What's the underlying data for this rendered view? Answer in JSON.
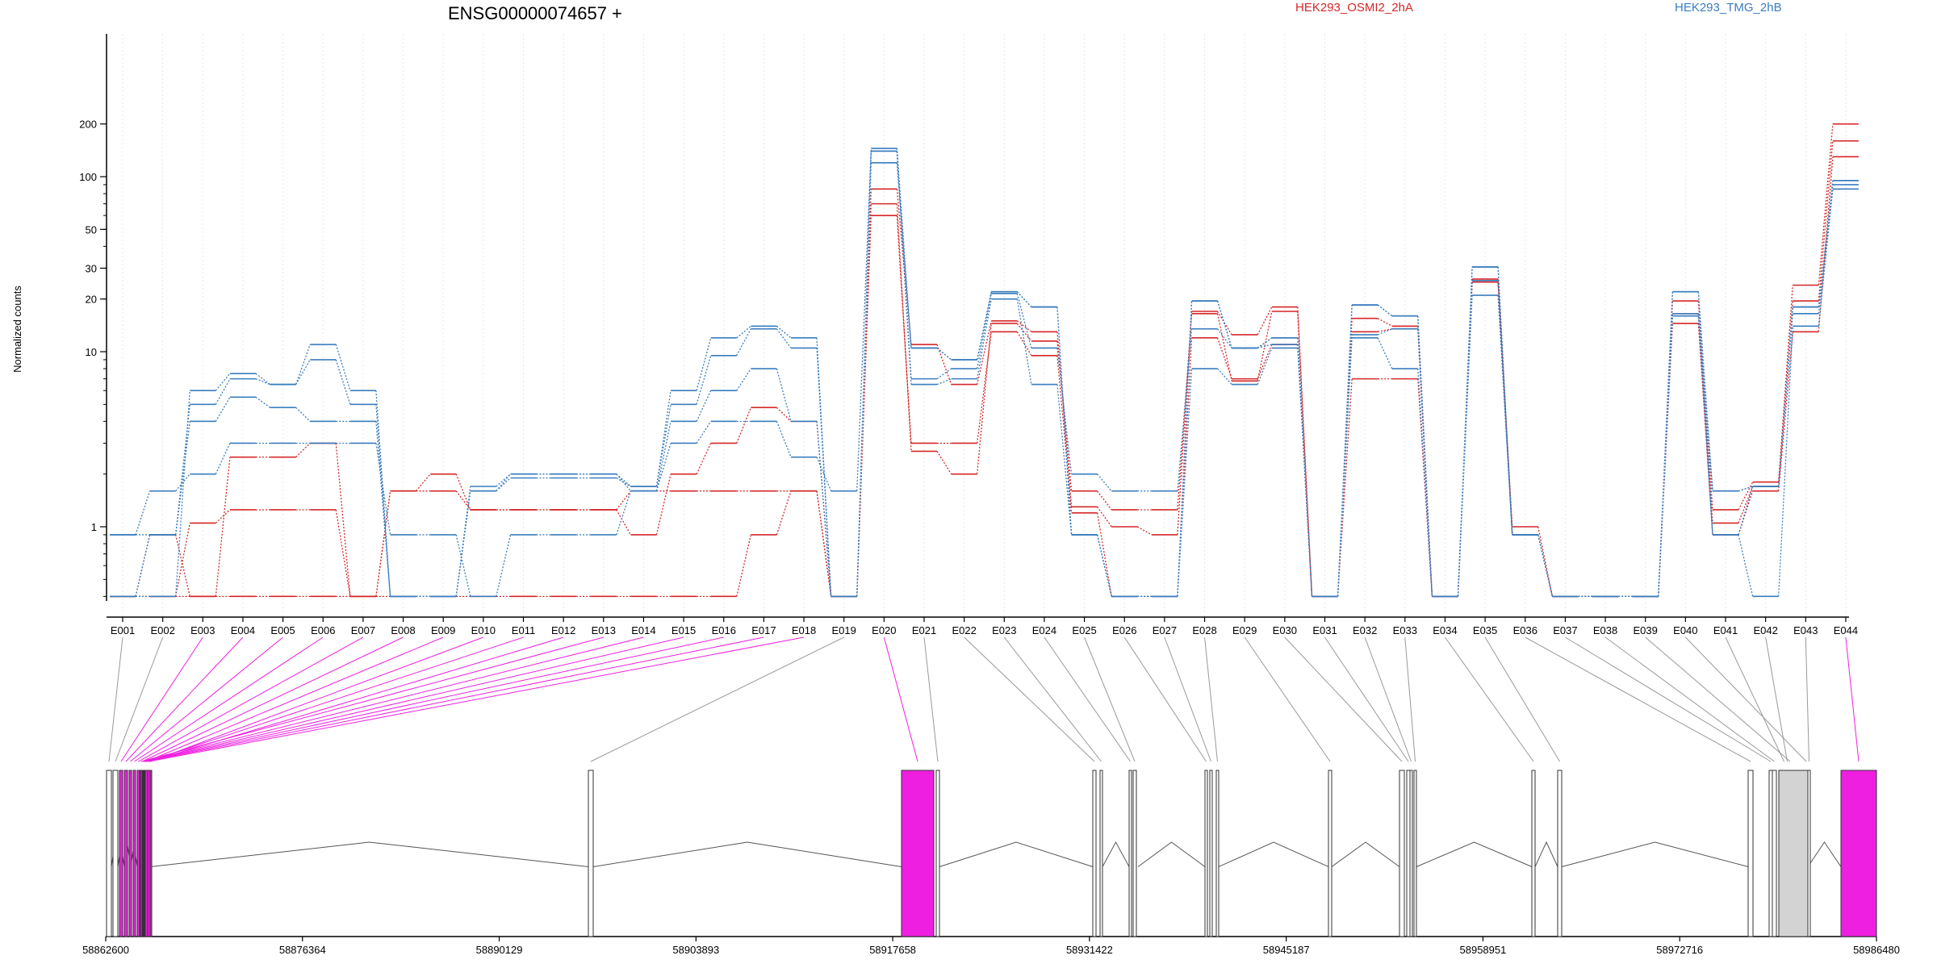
{
  "chart_data": {
    "type": "line",
    "title": "ENSG00000074657 +",
    "ylabel": "Normalized counts",
    "yscale": "log",
    "yticks": [
      1,
      10,
      20,
      30,
      50,
      100,
      200
    ],
    "ylim": [
      0.4,
      280
    ],
    "zero_level_value": 0.4,
    "legend": [
      {
        "name": "HEK293_OSMI2_2hA",
        "color": "#d62728"
      },
      {
        "name": "HEK293_TMG_2hB",
        "color": "#3a7dbf"
      }
    ],
    "categories": [
      "E001",
      "E002",
      "E003",
      "E004",
      "E005",
      "E006",
      "E007",
      "E008",
      "E009",
      "E010",
      "E011",
      "E012",
      "E013",
      "E014",
      "E015",
      "E016",
      "E017",
      "E018",
      "E019",
      "E020",
      "E021",
      "E022",
      "E023",
      "E024",
      "E025",
      "E026",
      "E027",
      "E028",
      "E029",
      "E030",
      "E031",
      "E032",
      "E033",
      "E034",
      "E035",
      "E036",
      "E037",
      "E038",
      "E039",
      "E040",
      "E041",
      "E042",
      "E043",
      "E044"
    ],
    "series": [
      {
        "group": "HEK293_OSMI2_2hA",
        "color": "#d62728",
        "values": [
          0.4,
          0.4,
          0.4,
          0.4,
          0.4,
          0.4,
          0.4,
          0.4,
          0.4,
          0.4,
          0.4,
          0.4,
          0.4,
          0.4,
          0.4,
          0.4,
          0.9,
          1.6,
          0.4,
          60,
          3.0,
          3.0,
          13.0,
          9.5,
          1.2,
          0.4,
          0.4,
          12.0,
          7.0,
          11.0,
          0.4,
          7.0,
          7.0,
          0.4,
          25,
          1.0,
          0.4,
          0.4,
          0.4,
          14.5,
          0.9,
          1.6,
          13.0,
          130
        ]
      },
      {
        "group": "HEK293_OSMI2_2hA",
        "color": "#d62728",
        "values": [
          0.4,
          0.4,
          1.05,
          1.25,
          1.25,
          1.25,
          0.4,
          1.6,
          1.6,
          1.25,
          1.25,
          1.25,
          1.25,
          1.6,
          1.6,
          1.6,
          1.6,
          1.6,
          0.4,
          70,
          2.7,
          2.0,
          14.5,
          11.5,
          1.6,
          1.25,
          1.25,
          16.5,
          6.8,
          17.0,
          0.4,
          13.0,
          13.5,
          0.4,
          25.5,
          0.9,
          0.4,
          0.4,
          0.4,
          16.5,
          1.05,
          1.7,
          19.5,
          160
        ]
      },
      {
        "group": "HEK293_OSMI2_2hA",
        "color": "#d62728",
        "values": [
          0.4,
          0.9,
          0.4,
          2.5,
          2.5,
          3.0,
          0.4,
          1.6,
          2.0,
          1.25,
          1.25,
          1.25,
          1.25,
          0.9,
          2.0,
          3.0,
          4.8,
          4.0,
          0.4,
          85,
          11.0,
          6.5,
          15.0,
          13.0,
          1.3,
          1.0,
          0.9,
          17.0,
          12.5,
          18.0,
          0.4,
          15.5,
          14.0,
          0.4,
          26,
          0.9,
          0.4,
          0.4,
          0.4,
          19.5,
          1.25,
          1.8,
          24,
          200
        ]
      },
      {
        "group": "HEK293_TMG_2hB",
        "color": "#3a7dbf",
        "values": [
          0.9,
          1.6,
          2.0,
          3.0,
          3.0,
          3.0,
          3.0,
          0.9,
          0.9,
          0.4,
          0.9,
          0.9,
          0.9,
          1.6,
          3.0,
          4.0,
          4.0,
          2.5,
          1.6,
          140,
          6.5,
          7.0,
          20.0,
          6.5,
          0.9,
          0.4,
          0.4,
          8.0,
          6.5,
          10.5,
          0.4,
          12.0,
          8.0,
          0.4,
          21,
          0.9,
          0.4,
          0.4,
          0.4,
          16.0,
          0.9,
          0.4,
          14.0,
          85
        ]
      },
      {
        "group": "HEK293_TMG_2hB",
        "color": "#3a7dbf",
        "values": [
          0.9,
          0.9,
          4.0,
          5.5,
          4.8,
          4.0,
          4.0,
          0.4,
          0.4,
          1.6,
          2.0,
          2.0,
          2.0,
          1.6,
          4.0,
          6.0,
          8.0,
          4.0,
          0.4,
          140,
          7.0,
          8.0,
          21.5,
          10.5,
          2.0,
          1.6,
          1.6,
          13.5,
          10.5,
          11.0,
          0.4,
          12.5,
          13.5,
          0.4,
          25.5,
          0.9,
          0.4,
          0.4,
          0.4,
          16.5,
          1.6,
          1.7,
          16.5,
          90
        ]
      },
      {
        "group": "HEK293_TMG_2hB",
        "color": "#3a7dbf",
        "values": [
          0.4,
          0.9,
          5.0,
          7.0,
          6.5,
          9.0,
          5.0,
          0.4,
          0.4,
          1.6,
          1.9,
          1.9,
          1.9,
          1.7,
          5.0,
          9.5,
          13.5,
          10.5,
          0.4,
          120,
          10.5,
          9.0,
          22.0,
          18.0,
          0.9,
          0.4,
          0.4,
          19.5,
          10.5,
          12.0,
          0.4,
          18.5,
          16.0,
          0.4,
          30.5,
          0.9,
          0.4,
          0.4,
          0.4,
          22.0,
          0.9,
          1.7,
          18.0,
          95
        ]
      },
      {
        "group": "HEK293_TMG_2hB",
        "color": "#3a7dbf",
        "values": [
          0.4,
          0.4,
          6.0,
          7.5,
          6.5,
          11.0,
          6.0,
          0.4,
          0.4,
          1.7,
          2.0,
          2.0,
          2.0,
          1.7,
          6.0,
          12.0,
          14.0,
          12.0,
          0.4,
          145,
          10.5,
          9.0,
          22.0,
          18.0,
          0.9,
          0.4,
          0.4,
          19.5,
          10.5,
          12.0,
          0.4,
          18.5,
          16.0,
          0.4,
          30.5,
          0.9,
          0.4,
          0.4,
          0.4,
          22.0,
          1.6,
          1.7,
          18.0,
          95
        ]
      }
    ],
    "gene_track": {
      "xticks": [
        "58862600",
        "58876364",
        "58890129",
        "58903893",
        "58917658",
        "58931422",
        "58945187",
        "58958951",
        "58972716",
        "58986480"
      ],
      "highlight_color": "#ee1fe0",
      "exon_box_color": "#d3d3d3",
      "highlighted_exons": [
        "E003",
        "E004",
        "E005",
        "E006",
        "E007",
        "E008",
        "E009",
        "E010",
        "E011",
        "E012",
        "E013",
        "E014",
        "E015",
        "E016",
        "E017",
        "E018",
        "E020",
        "E044"
      ]
    }
  }
}
